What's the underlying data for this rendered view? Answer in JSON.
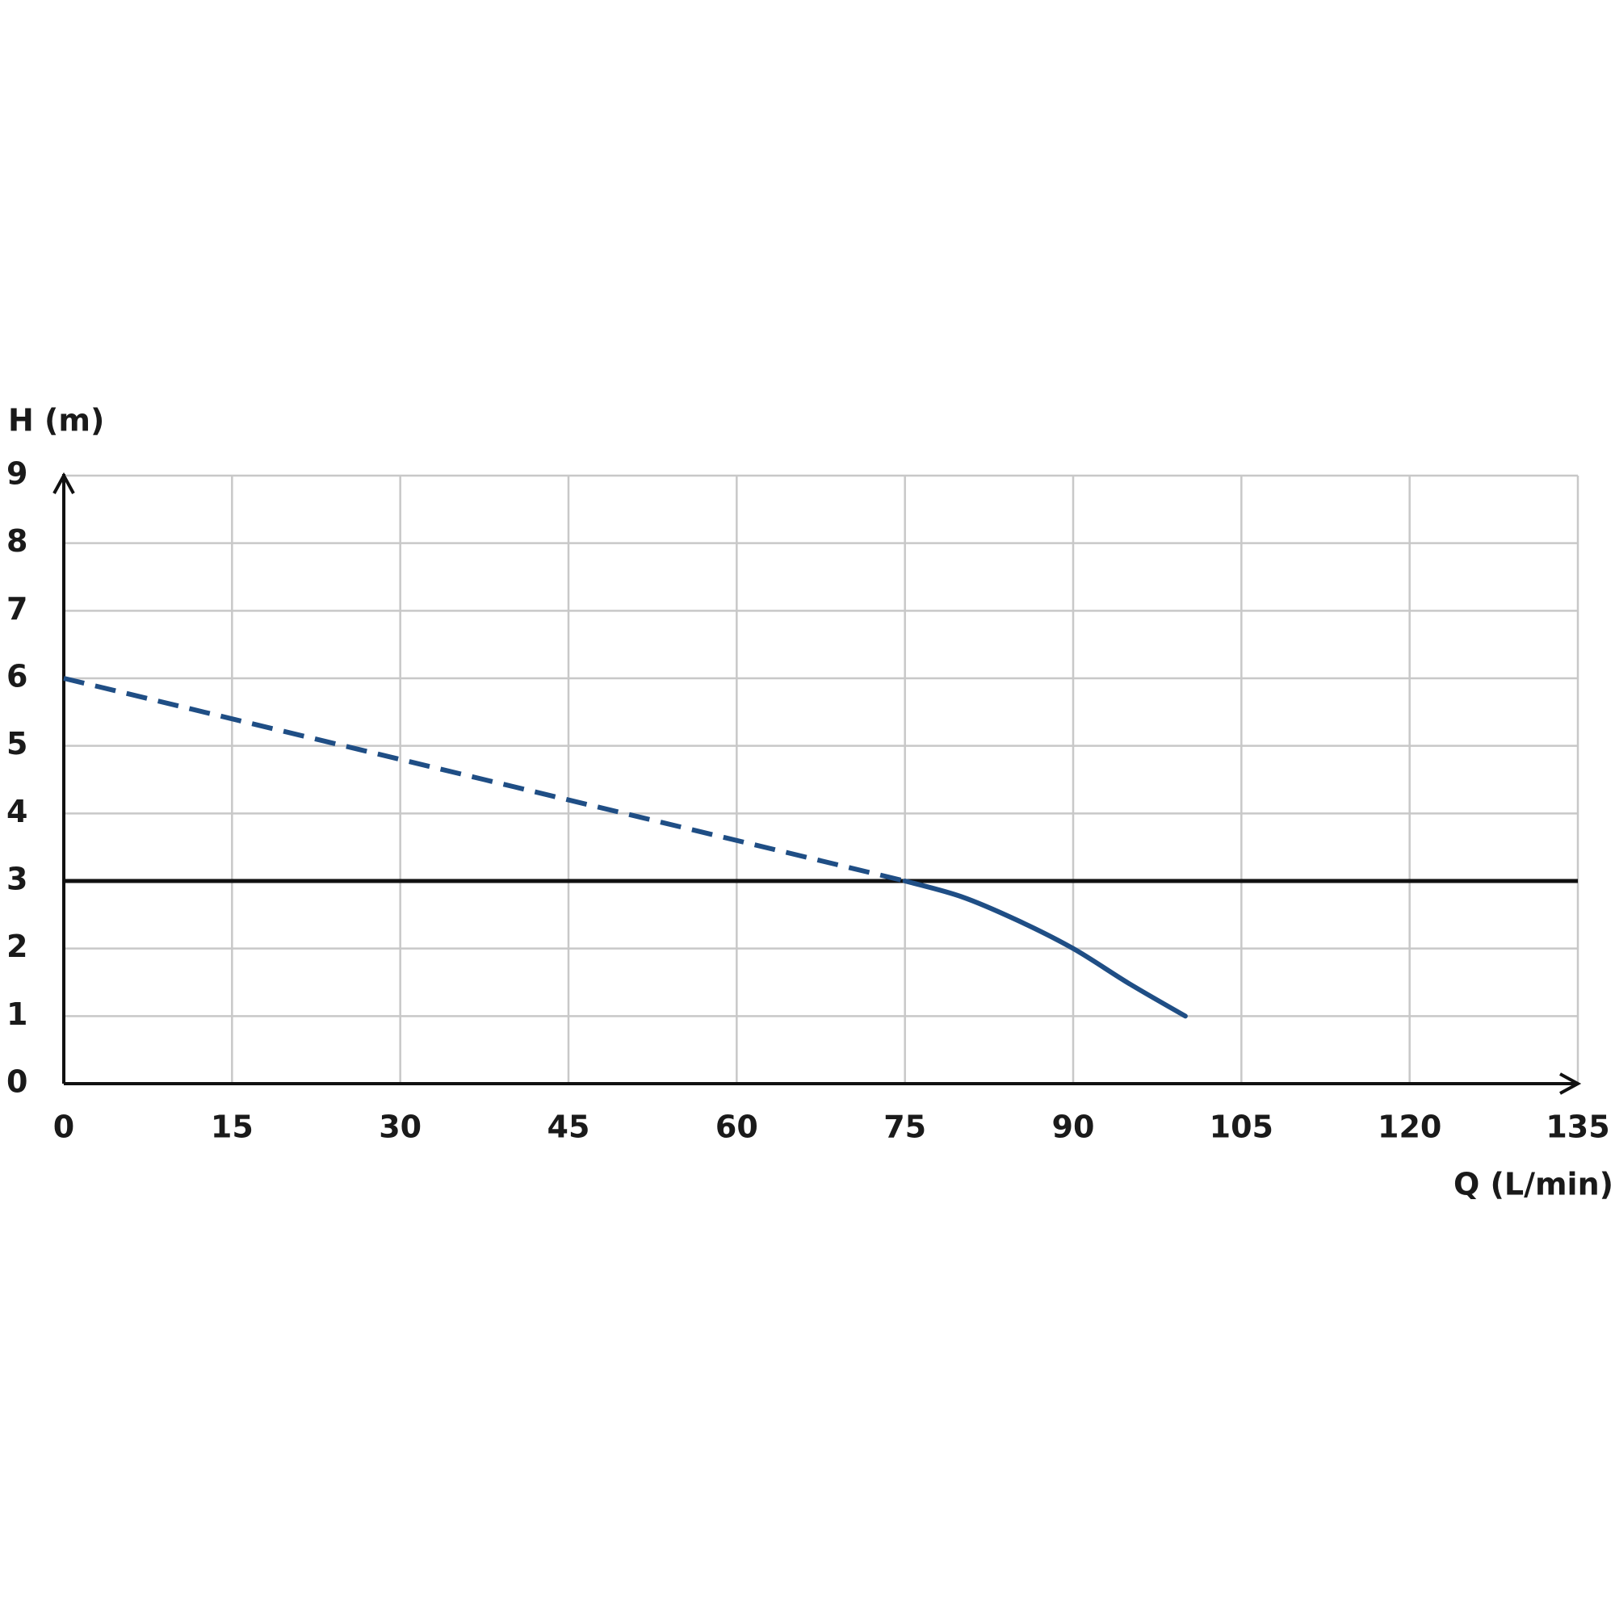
{
  "chart_data": {
    "type": "line",
    "y_label": "H (m)",
    "x_label": "Q (L/min)",
    "xlim": [
      0,
      135
    ],
    "xticks": [
      0,
      15,
      30,
      45,
      60,
      75,
      90,
      105,
      120,
      135
    ],
    "ylim": [
      0,
      9
    ],
    "yticks": [
      0,
      1,
      2,
      3,
      4,
      5,
      6,
      7,
      8,
      9
    ],
    "grid": true,
    "reference_line": {
      "value": 3,
      "color": "#111111"
    },
    "series": [
      {
        "color": "#1f4e85",
        "dashed": true,
        "x": [
          0,
          75
        ],
        "values": [
          6,
          3
        ]
      },
      {
        "color": "#1f4e85",
        "dashed": false,
        "x": [
          75,
          80,
          85,
          90,
          95,
          100
        ],
        "values": [
          3,
          2.77,
          2.42,
          2,
          1.48,
          1
        ]
      }
    ]
  }
}
